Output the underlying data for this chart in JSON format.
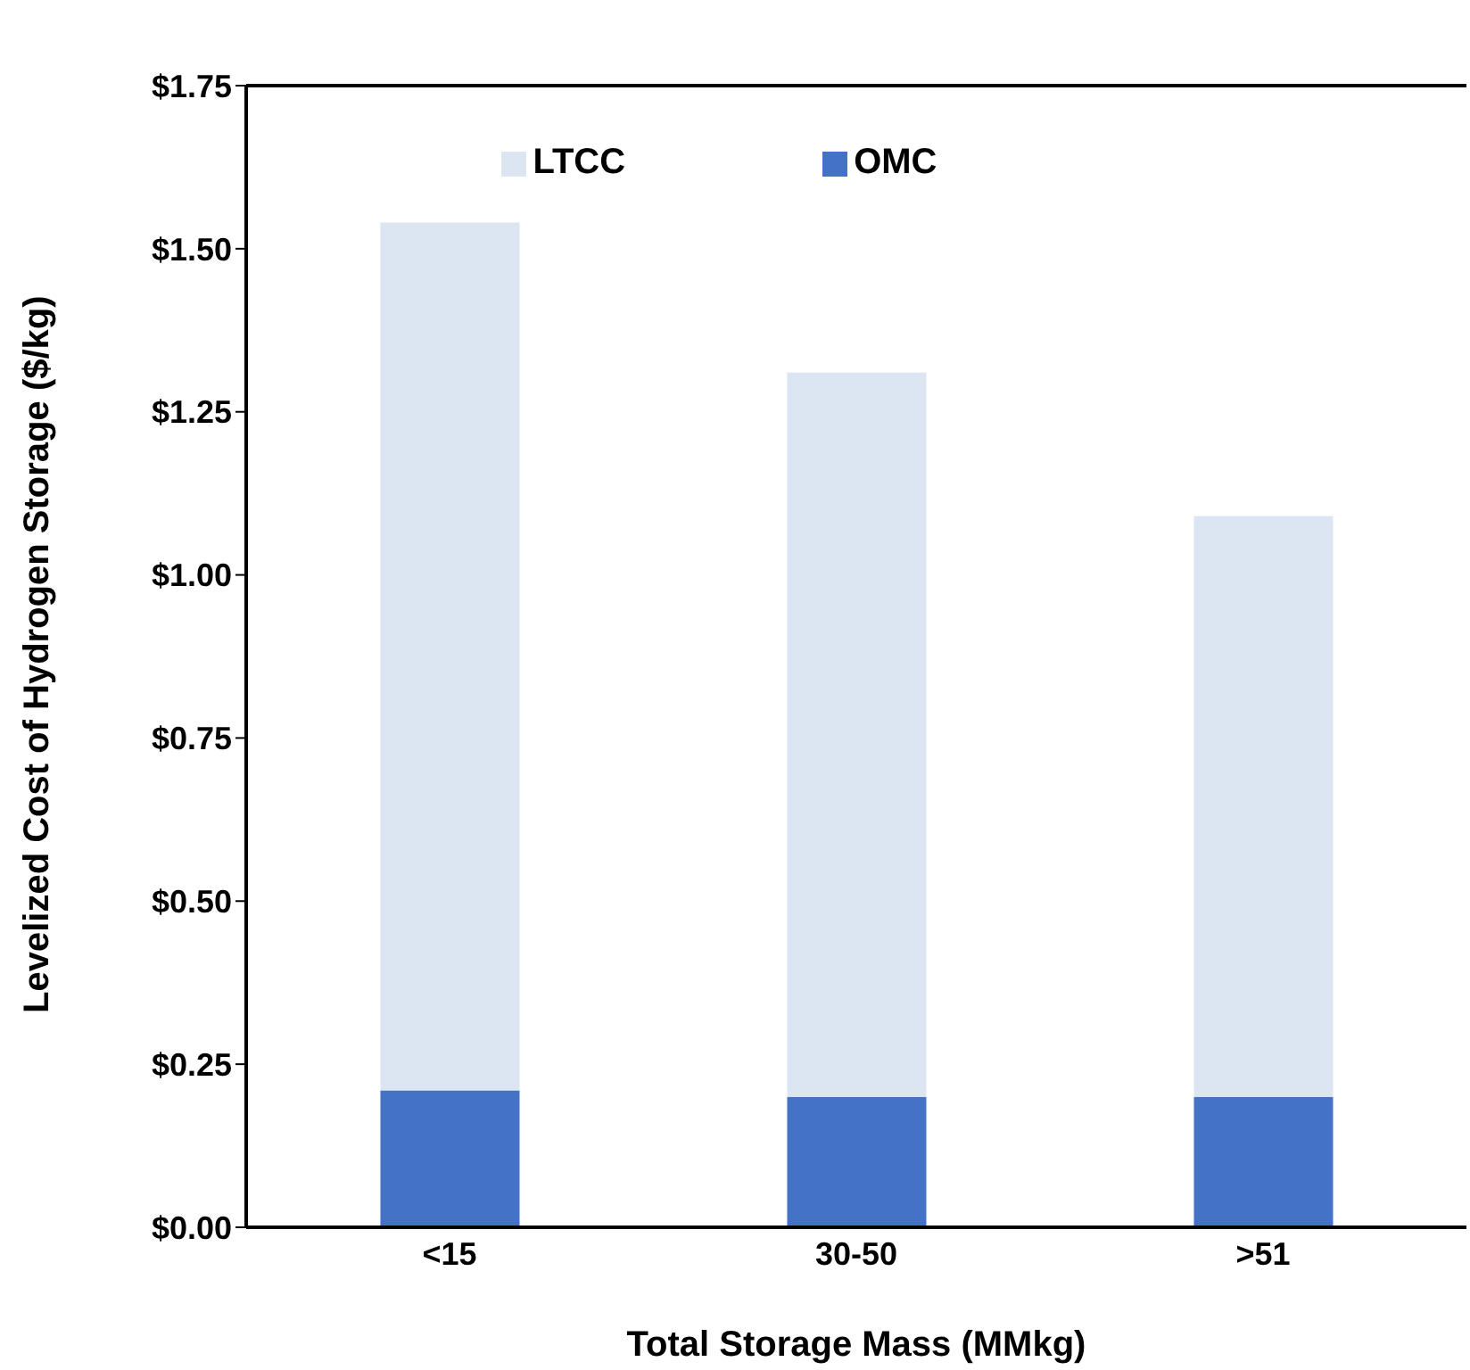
{
  "chart_data": {
    "type": "bar",
    "stacked": true,
    "xlabel": "Total Storage Mass (MMkg)",
    "ylabel": "Levelized Cost of Hydrogen Storage ($/kg)",
    "categories": [
      "<15",
      "30-50",
      ">51"
    ],
    "series": [
      {
        "name": "OMC",
        "color": "#4472c4",
        "values": [
          0.21,
          0.2,
          0.2
        ]
      },
      {
        "name": "LTCC",
        "color": "#dce6f2",
        "values": [
          1.33,
          1.11,
          0.89
        ]
      }
    ],
    "ylim": [
      0,
      1.75
    ],
    "yticks": [
      {
        "value": 0,
        "label": "$0.00"
      },
      {
        "value": 0.25,
        "label": "$0.25"
      },
      {
        "value": 0.5,
        "label": "$0.50"
      },
      {
        "value": 0.75,
        "label": "$0.75"
      },
      {
        "value": 1,
        "label": "$1.00"
      },
      {
        "value": 1.25,
        "label": "$1.25"
      },
      {
        "value": 1.5,
        "label": "$1.50"
      },
      {
        "value": 1.75,
        "label": "$1.75"
      }
    ],
    "grid": false,
    "legend": "top"
  }
}
